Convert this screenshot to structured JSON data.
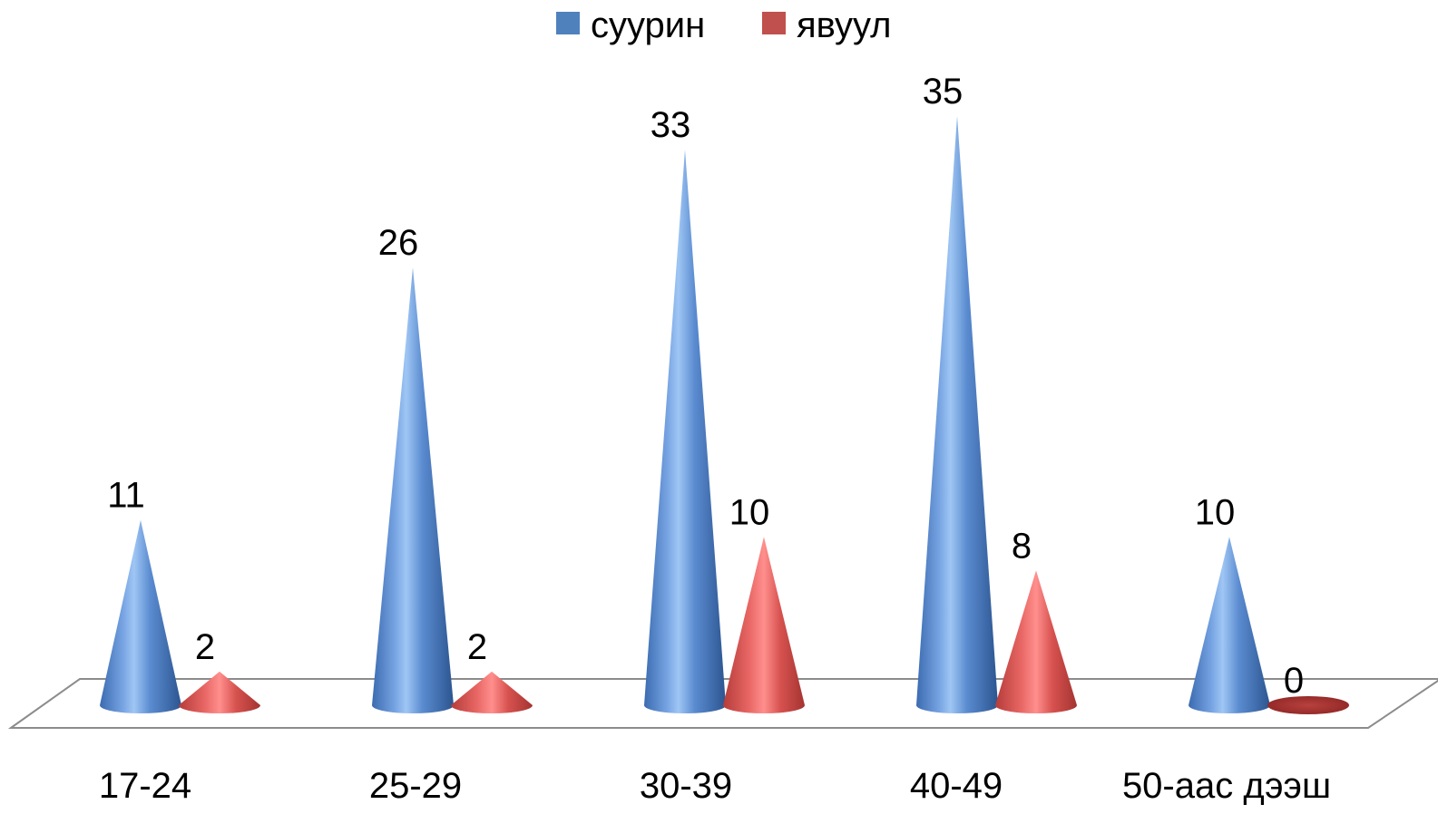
{
  "chart_data": {
    "type": "bar",
    "bar_shape": "cone",
    "style": "3d",
    "categories": [
      "17-24",
      "25-29",
      "30-39",
      "40-49",
      "50-аас дээш"
    ],
    "series": [
      {
        "name": "суурин",
        "values": [
          11,
          26,
          33,
          35,
          10
        ],
        "color": "#4F81BD"
      },
      {
        "name": "явуул",
        "values": [
          2,
          2,
          10,
          8,
          0
        ],
        "color": "#C0504D"
      }
    ],
    "legend": "top",
    "grid": false,
    "data_labels": true
  }
}
